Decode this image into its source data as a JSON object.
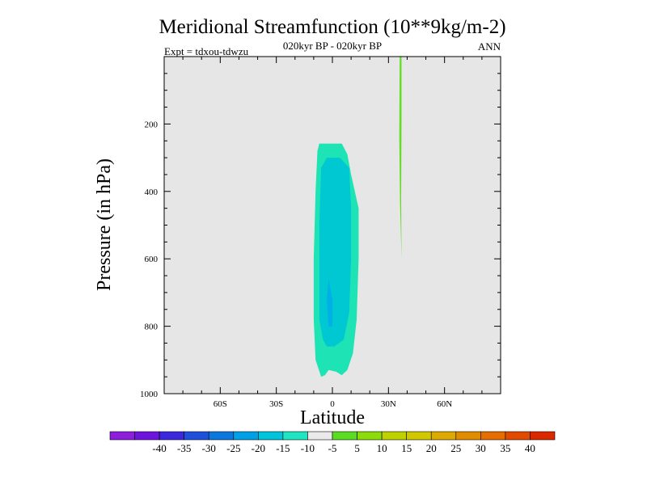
{
  "chart_data": {
    "type": "heatmap",
    "title": "Meridional Streamfunction (10**9kg/m-2)",
    "subtitle": "020kyr BP - 020kyr BP",
    "left_annotation": "Expt = tdxou-tdwzu",
    "right_annotation": "ANN",
    "xlabel": "Latitude",
    "ylabel": "Pressure (in hPa)",
    "xlim": [
      -90,
      90
    ],
    "ylim": [
      1000,
      0
    ],
    "x_ticks": [
      {
        "value": -60,
        "label": "60S"
      },
      {
        "value": -30,
        "label": "30S"
      },
      {
        "value": 0,
        "label": "0"
      },
      {
        "value": 30,
        "label": "30N"
      },
      {
        "value": 60,
        "label": "60N"
      }
    ],
    "y_ticks": [
      {
        "value": 200,
        "label": "200"
      },
      {
        "value": 400,
        "label": "400"
      },
      {
        "value": 600,
        "label": "600"
      },
      {
        "value": 800,
        "label": "800"
      },
      {
        "value": 1000,
        "label": "1000"
      }
    ],
    "background_color": "#e6e6e6",
    "contours": [
      {
        "level": "-10 to -5",
        "color": "#1ee3b4",
        "points": [
          [
            -6,
            950
          ],
          [
            -9,
            900
          ],
          [
            -10,
            780
          ],
          [
            -10,
            600
          ],
          [
            -9,
            400
          ],
          [
            -8,
            280
          ],
          [
            -7,
            258
          ],
          [
            5,
            258
          ],
          [
            8,
            290
          ],
          [
            10,
            350
          ],
          [
            14,
            450
          ],
          [
            14,
            600
          ],
          [
            13,
            780
          ],
          [
            11,
            880
          ],
          [
            8,
            930
          ],
          [
            5,
            945
          ],
          [
            2,
            935
          ],
          [
            -2,
            930
          ],
          [
            -4,
            945
          ]
        ]
      },
      {
        "level": "-15 to -10",
        "color": "#00c8d2",
        "points": [
          [
            -5,
            840
          ],
          [
            -7,
            780
          ],
          [
            -7,
            500
          ],
          [
            -6,
            330
          ],
          [
            -3,
            300
          ],
          [
            4,
            300
          ],
          [
            9,
            330
          ],
          [
            10,
            450
          ],
          [
            10,
            600
          ],
          [
            9,
            760
          ],
          [
            6,
            840
          ],
          [
            1,
            860
          ],
          [
            -3,
            860
          ]
        ]
      },
      {
        "level": "-20 to -15",
        "color": "#00afe6",
        "points": [
          [
            -2,
            800
          ],
          [
            -3,
            720
          ],
          [
            -2,
            660
          ],
          [
            0,
            720
          ],
          [
            0,
            800
          ]
        ]
      },
      {
        "level": "5 to 10",
        "color": "#64dc28",
        "points": [
          [
            36,
            0
          ],
          [
            37,
            0
          ],
          [
            37,
            180
          ],
          [
            36.8,
            420
          ],
          [
            37,
            600
          ],
          [
            36.2,
            440
          ],
          [
            35.8,
            240
          ],
          [
            35.9,
            90
          ]
        ]
      }
    ],
    "colorbar": {
      "colors": [
        "#8c1edc",
        "#6e14dc",
        "#3c28dc",
        "#1e50dc",
        "#0a78dc",
        "#00a0e6",
        "#00c3dc",
        "#1ee6c3",
        "#eaeaea",
        "#5adc23",
        "#8cdc0a",
        "#bed200",
        "#d2c800",
        "#dcaa00",
        "#e18c00",
        "#e66e00",
        "#e14b00",
        "#dc2800"
      ],
      "labels": [
        "-40",
        "-35",
        "-30",
        "-25",
        "-20",
        "-15",
        "-10",
        "-5",
        "5",
        "10",
        "15",
        "20",
        "25",
        "30",
        "35",
        "40"
      ]
    }
  }
}
